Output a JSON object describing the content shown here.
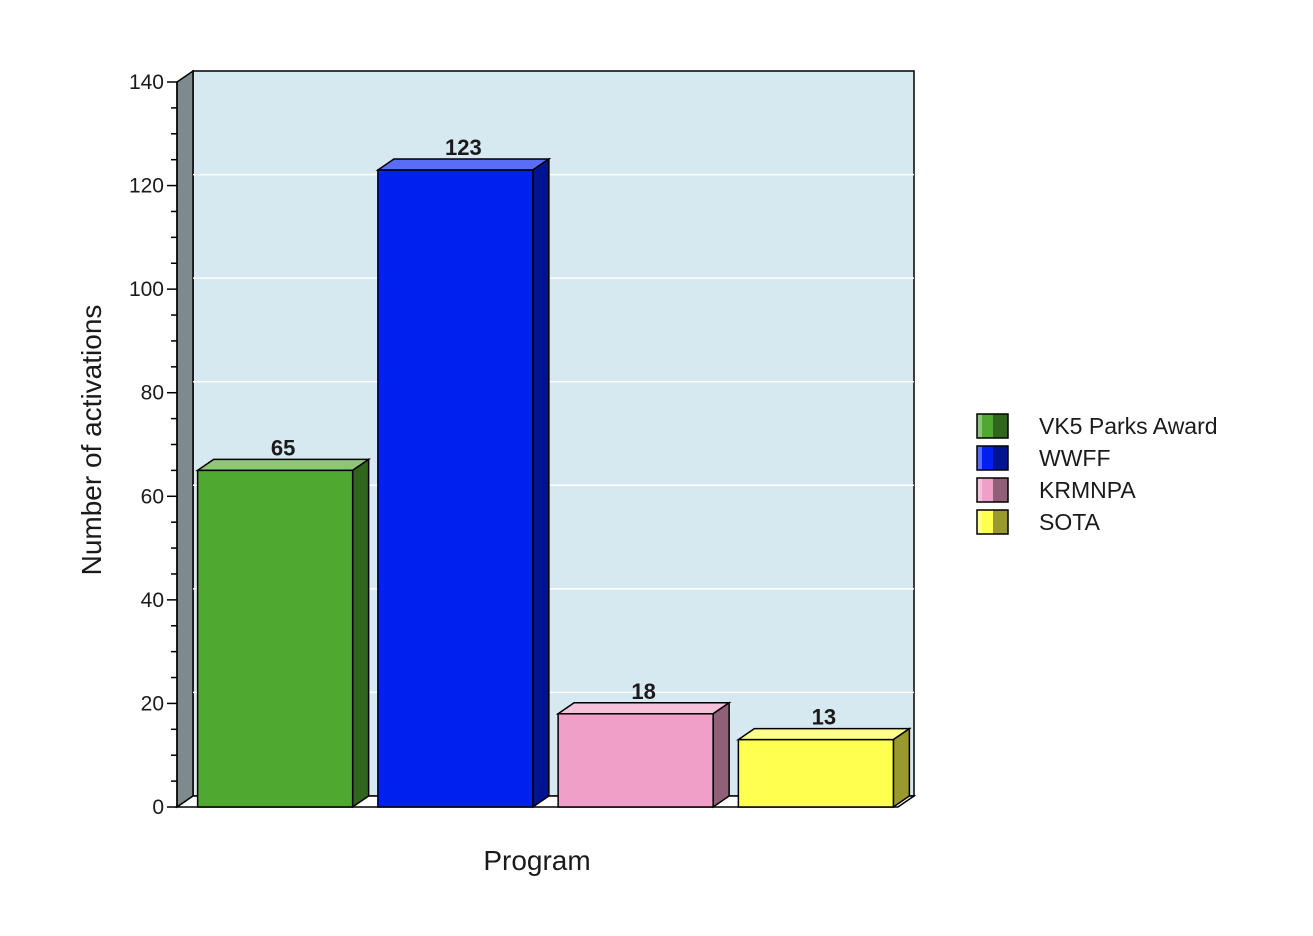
{
  "chart_data": {
    "type": "bar",
    "style": "3d",
    "categories": [
      "VK5 Parks Award",
      "WWFF",
      "KRMNPA",
      "SOTA"
    ],
    "values": [
      65,
      123,
      18,
      13
    ],
    "colors": [
      "#4fa82f",
      "#0020f0",
      "#f0a0c8",
      "#ffff50"
    ],
    "data_labels": [
      "65",
      "123",
      "18",
      "13"
    ],
    "xlabel": "Program",
    "ylabel": "Number of activations",
    "ylim": [
      0,
      140
    ],
    "yticks": [
      0,
      20,
      40,
      60,
      80,
      100,
      120,
      140
    ],
    "grid": true,
    "legend": "right",
    "plot_background": "#d6e8f0"
  }
}
